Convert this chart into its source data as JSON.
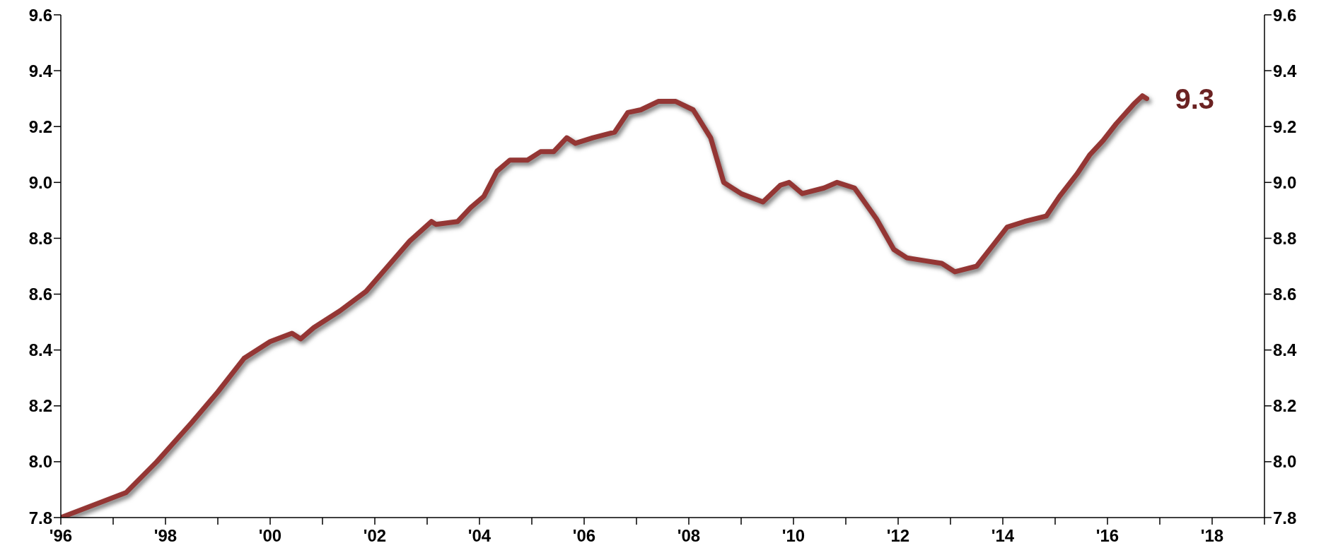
{
  "chart_data": {
    "type": "line",
    "x": [
      "1996-01",
      "1997-04",
      "1997-11",
      "1998-07",
      "1999-01",
      "1999-07",
      "2000-01",
      "2000-06",
      "2000-08",
      "2000-11",
      "2001-05",
      "2001-11",
      "2002-04",
      "2002-09",
      "2003-02",
      "2003-03",
      "2003-08",
      "2003-11",
      "2004-02",
      "2004-05",
      "2004-08",
      "2004-12",
      "2005-03",
      "2005-06",
      "2005-09",
      "2005-11",
      "2006-03",
      "2006-08",
      "2006-11",
      "2007-02",
      "2007-06",
      "2007-10",
      "2008-02",
      "2008-06",
      "2008-09",
      "2009-01",
      "2009-06",
      "2009-10",
      "2009-12",
      "2010-03",
      "2010-08",
      "2010-11",
      "2011-03",
      "2011-08",
      "2011-12",
      "2012-03",
      "2012-07",
      "2012-11",
      "2013-02",
      "2013-07",
      "2013-11",
      "2014-02",
      "2014-06",
      "2014-11",
      "2015-02",
      "2015-06",
      "2015-09",
      "2015-12",
      "2016-03",
      "2016-07",
      "2016-09",
      "2016-10"
    ],
    "series": [
      {
        "color": "#943634",
        "values": [
          7.8,
          7.89,
          8.0,
          8.14,
          8.25,
          8.37,
          8.43,
          8.46,
          8.44,
          8.48,
          8.54,
          8.61,
          8.7,
          8.79,
          8.86,
          8.85,
          8.86,
          8.91,
          8.95,
          9.04,
          9.08,
          9.08,
          9.11,
          9.11,
          9.16,
          9.14,
          9.16,
          9.18,
          9.25,
          9.26,
          9.29,
          9.29,
          9.26,
          9.16,
          9.0,
          8.96,
          8.93,
          8.99,
          9.0,
          8.96,
          8.98,
          9.0,
          8.98,
          8.87,
          8.76,
          8.73,
          8.72,
          8.71,
          8.68,
          8.7,
          8.78,
          8.84,
          8.86,
          8.88,
          8.95,
          9.03,
          9.1,
          9.15,
          9.21,
          9.28,
          9.31,
          9.3
        ]
      }
    ],
    "xlim": [
      "1996",
      "2019"
    ],
    "xticks": [
      {
        "value": "1996",
        "label": "'96"
      },
      {
        "value": "1997",
        "label": null
      },
      {
        "value": "1998",
        "label": "'98"
      },
      {
        "value": "1999",
        "label": null
      },
      {
        "value": "2000",
        "label": "'00"
      },
      {
        "value": "2001",
        "label": null
      },
      {
        "value": "2002",
        "label": "'02"
      },
      {
        "value": "2003",
        "label": null
      },
      {
        "value": "2004",
        "label": "'04"
      },
      {
        "value": "2005",
        "label": null
      },
      {
        "value": "2006",
        "label": "'06"
      },
      {
        "value": "2007",
        "label": null
      },
      {
        "value": "2008",
        "label": "'08"
      },
      {
        "value": "2009",
        "label": null
      },
      {
        "value": "2010",
        "label": "'10"
      },
      {
        "value": "2011",
        "label": null
      },
      {
        "value": "2012",
        "label": "'12"
      },
      {
        "value": "2013",
        "label": null
      },
      {
        "value": "2014",
        "label": "'14"
      },
      {
        "value": "2015",
        "label": null
      },
      {
        "value": "2016",
        "label": "'16"
      },
      {
        "value": "2017",
        "label": null
      },
      {
        "value": "2018",
        "label": "'18"
      },
      {
        "value": "2019",
        "label": null
      }
    ],
    "ylim": [
      7.8,
      9.6
    ],
    "yticks": [
      {
        "value": 7.8,
        "label": "7.8"
      },
      {
        "value": 8.0,
        "label": "8.0"
      },
      {
        "value": 8.2,
        "label": "8.2"
      },
      {
        "value": 8.4,
        "label": "8.4"
      },
      {
        "value": 8.6,
        "label": "8.6"
      },
      {
        "value": 8.8,
        "label": "8.8"
      },
      {
        "value": 9.0,
        "label": "9.0"
      },
      {
        "value": 9.2,
        "label": "9.2"
      },
      {
        "value": 9.4,
        "label": "9.4"
      },
      {
        "value": 9.6,
        "label": "9.6"
      }
    ],
    "y2lim": [
      7.8,
      9.6
    ],
    "y2ticks": [
      {
        "value": 7.8,
        "label": "7.8"
      },
      {
        "value": 8.0,
        "label": "8.0"
      },
      {
        "value": 8.2,
        "label": "8.2"
      },
      {
        "value": 8.4,
        "label": "8.4"
      },
      {
        "value": 8.6,
        "label": "8.6"
      },
      {
        "value": 8.8,
        "label": "8.8"
      },
      {
        "value": 9.0,
        "label": "9.0"
      },
      {
        "value": 9.2,
        "label": "9.2"
      },
      {
        "value": 9.4,
        "label": "9.4"
      },
      {
        "value": 9.6,
        "label": "9.6"
      }
    ],
    "annotations": [
      {
        "text": "9.3",
        "x": "2016-10",
        "y": 9.3
      }
    ],
    "grid": false,
    "legend": false,
    "marker": "none",
    "line_style": "solid"
  }
}
